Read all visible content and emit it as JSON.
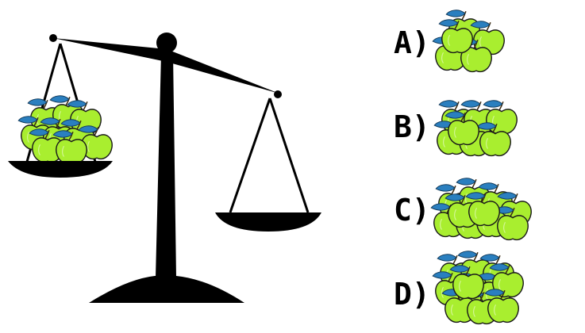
{
  "scene": {
    "background": "#ffffff",
    "scale_color": "#000000",
    "apple_fill": "#a9ee2f",
    "apple_stroke": "#1a1a1a",
    "leaf_color": "#2a7fbf",
    "stem_color": "#3a2a10",
    "icons": [
      "balance-scale-icon",
      "apple-icon"
    ]
  },
  "left_pan": {
    "apple_count": 9
  },
  "right_pan": {
    "apple_count": 0
  },
  "options": [
    {
      "label": "A)",
      "apple_count": 5
    },
    {
      "label": "B)",
      "apple_count": 7
    },
    {
      "label": "C)",
      "apple_count": 10
    },
    {
      "label": "D)",
      "apple_count": 11
    }
  ]
}
